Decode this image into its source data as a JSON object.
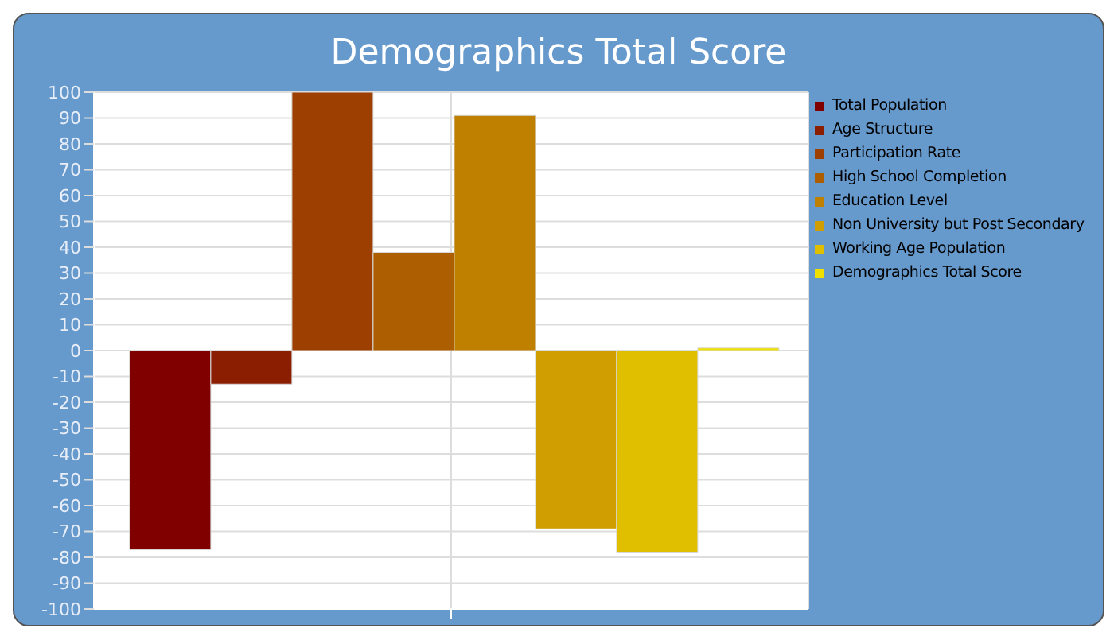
{
  "chart_data": {
    "type": "bar",
    "title": "Demographics Total Score",
    "categories": [
      null
    ],
    "series": [
      {
        "name": "Total Population",
        "color": "#800000",
        "values": [
          -77
        ]
      },
      {
        "name": "Age Structure",
        "color": "#8b1e00",
        "values": [
          -13
        ]
      },
      {
        "name": "Participation Rate",
        "color": "#9c3f00",
        "values": [
          100
        ]
      },
      {
        "name": "High School Completion",
        "color": "#ad5e00",
        "values": [
          38
        ]
      },
      {
        "name": "Education Level",
        "color": "#bf8000",
        "values": [
          91
        ]
      },
      {
        "name": "Non University but Post Secondary",
        "color": "#d09e00",
        "values": [
          -69
        ]
      },
      {
        "name": "Working Age Population",
        "color": "#e0bf00",
        "values": [
          -78
        ]
      },
      {
        "name": "Demographics Total Score",
        "color": "#f0e000",
        "values": [
          1
        ]
      }
    ],
    "ylim": [
      -100,
      100
    ],
    "yticks": [
      -100,
      -90,
      -80,
      -70,
      -60,
      -50,
      -40,
      -30,
      -20,
      -10,
      0,
      10,
      20,
      30,
      40,
      50,
      60,
      70,
      80,
      90,
      100
    ],
    "grid": true,
    "legend": "right",
    "tick_labels": "y"
  }
}
